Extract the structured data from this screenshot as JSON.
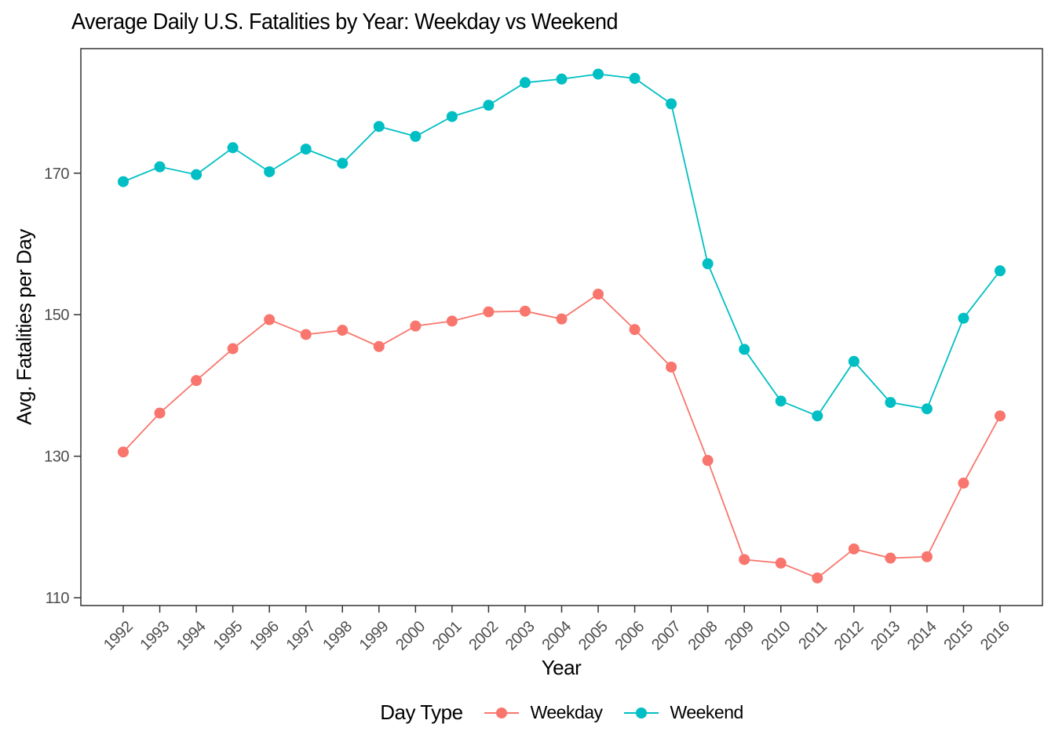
{
  "chart_data": {
    "type": "line",
    "title": "Average Daily U.S. Fatalities by Year: Weekday vs Weekend",
    "xlabel": "Year",
    "ylabel": "Avg. Fatalities per Day",
    "legend_title": "Day Type",
    "legend_position": "bottom",
    "grid": false,
    "panel_background": "#ffffff",
    "x": [
      "1992",
      "1993",
      "1994",
      "1995",
      "1996",
      "1997",
      "1998",
      "1999",
      "2000",
      "2001",
      "2002",
      "2003",
      "2004",
      "2005",
      "2006",
      "2007",
      "2008",
      "2009",
      "2010",
      "2011",
      "2012",
      "2013",
      "2014",
      "2015",
      "2016"
    ],
    "series": [
      {
        "name": "Weekday",
        "color": "#F8766D",
        "values": [
          130.6,
          136.1,
          140.7,
          145.2,
          149.3,
          147.2,
          147.8,
          145.5,
          148.4,
          149.1,
          150.4,
          150.5,
          149.4,
          152.9,
          147.9,
          142.6,
          129.4,
          115.4,
          114.9,
          112.8,
          116.9,
          115.6,
          115.8,
          126.2,
          135.7
        ]
      },
      {
        "name": "Weekend",
        "color": "#00BFC4",
        "values": [
          168.8,
          170.9,
          169.8,
          173.6,
          170.2,
          173.4,
          171.4,
          176.6,
          175.2,
          178.0,
          179.6,
          182.8,
          183.3,
          184.0,
          183.4,
          179.8,
          157.2,
          145.1,
          137.8,
          135.7,
          143.4,
          137.6,
          136.7,
          149.5,
          156.2
        ]
      }
    ],
    "y_ticks": [
      110,
      130,
      150,
      170
    ],
    "ylim": [
      108.9,
      187.6
    ],
    "styles": {
      "axis_text_color": "#4D4D4D",
      "axis_tick_color": "#333333",
      "panel_border_color": "#333333",
      "x_label_angle_deg": 45
    }
  }
}
